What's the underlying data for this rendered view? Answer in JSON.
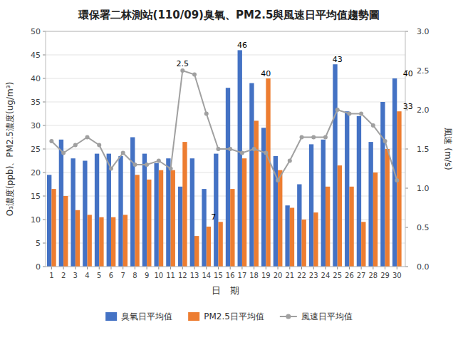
{
  "chart_data": {
    "type": "bar",
    "title": "環保署二林測站(110/09)臭氧、PM2.5與風速日平均值趨勢圖",
    "x_label": "日　期",
    "y_label": "O₃濃度(ppb)、PM2.5濃度(ug/m³)",
    "y2_label": "風速 (m/s)",
    "x": [
      1,
      2,
      3,
      4,
      5,
      6,
      7,
      8,
      9,
      10,
      11,
      12,
      13,
      14,
      15,
      16,
      17,
      18,
      19,
      20,
      21,
      22,
      23,
      24,
      25,
      26,
      27,
      28,
      29,
      30
    ],
    "xlim": [
      0.5,
      30.7
    ],
    "xticks": [
      1,
      2,
      3,
      4,
      5,
      6,
      7,
      8,
      9,
      10,
      11,
      12,
      13,
      14,
      15,
      16,
      17,
      18,
      19,
      20,
      21,
      22,
      23,
      24,
      25,
      26,
      27,
      28,
      29,
      30
    ],
    "ylim": [
      0,
      50
    ],
    "yticks": [
      0,
      5,
      10,
      15,
      20,
      25,
      30,
      35,
      40,
      45,
      50
    ],
    "y2lim": [
      0.0,
      3.0
    ],
    "y2ticks": [
      {
        "value": 0.0,
        "label": "0.0"
      },
      0.5,
      {
        "value": 1.0,
        "label": "1.0"
      },
      1.5,
      {
        "value": 2.0,
        "label": "2.0"
      },
      2.5,
      {
        "value": 3.0,
        "label": "3.0"
      }
    ],
    "grid": true,
    "legend": "bottom",
    "series": [
      {
        "name": "臭氧日平均值",
        "type": "bar",
        "color": "#4472C4",
        "values": [
          19.5,
          27,
          23,
          22.5,
          24,
          24,
          23.5,
          27.5,
          24,
          22,
          23,
          17,
          23,
          16.5,
          24,
          38,
          46,
          39,
          29.5,
          23.5,
          13,
          17.5,
          26,
          27,
          43,
          33,
          32,
          26.5,
          35,
          40
        ]
      },
      {
        "name": "PM2.5日平均值",
        "type": "bar",
        "color": "#ED7D31",
        "values": [
          16.5,
          15,
          12,
          11,
          10.5,
          10.5,
          11,
          19.5,
          18.5,
          20.5,
          20.5,
          26.5,
          6.5,
          8.5,
          9.5,
          16.5,
          23,
          31,
          40,
          20.5,
          12.5,
          10,
          11.5,
          17,
          21.5,
          17,
          9.5,
          20,
          25,
          33
        ]
      },
      {
        "name": "風速日平均值",
        "type": "line",
        "axis": "y2",
        "color": "#A0A0A0",
        "marker": "circle",
        "line_style": "solid",
        "values": [
          1.6,
          1.45,
          1.55,
          1.65,
          1.55,
          1.25,
          1.45,
          1.3,
          1.3,
          1.35,
          1.25,
          2.5,
          2.45,
          1.95,
          1.5,
          1.5,
          1.45,
          1.5,
          1.45,
          1.1,
          1.35,
          1.65,
          1.65,
          1.65,
          2.0,
          1.95,
          1.95,
          1.8,
          1.6,
          1.1
        ]
      }
    ],
    "annotations": [
      {
        "text": "2.5",
        "x": 12,
        "y": 2.5,
        "axis": "y2"
      },
      {
        "text": "7",
        "x": 14.6,
        "y": 9.5
      },
      {
        "text": "46",
        "x": 17,
        "y": 46
      },
      {
        "text": "40",
        "x": 19,
        "y": 40
      },
      {
        "text": "43",
        "x": 25,
        "y": 43
      },
      {
        "text": "40",
        "x": 30.5,
        "y": 40
      },
      {
        "text": "33",
        "x": 30.5,
        "y": 33
      }
    ]
  }
}
